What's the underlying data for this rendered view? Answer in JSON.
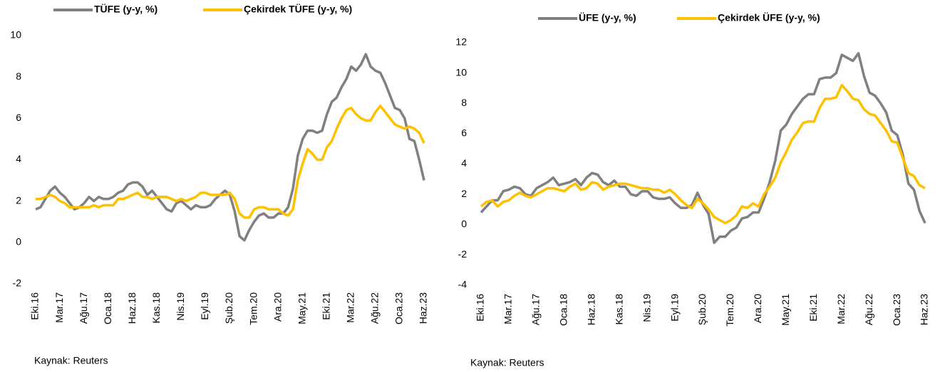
{
  "chart_data": [
    {
      "type": "line",
      "categories": [
        "Eki.16",
        null,
        null,
        null,
        null,
        "Mar.17",
        null,
        null,
        null,
        null,
        "Ağu.17",
        null,
        null,
        null,
        null,
        "Oca.18",
        null,
        null,
        null,
        null,
        "Haz.18",
        null,
        null,
        null,
        null,
        "Kas.18",
        null,
        null,
        null,
        null,
        "Nis.19",
        null,
        null,
        null,
        null,
        "Eyl.19",
        null,
        null,
        null,
        null,
        "Şub.20",
        null,
        null,
        null,
        null,
        "Tem.20",
        null,
        null,
        null,
        null,
        "Ara.20",
        null,
        null,
        null,
        null,
        "May.21",
        null,
        null,
        null,
        null,
        "Eki.21",
        null,
        null,
        null,
        null,
        "Mar.22",
        null,
        null,
        null,
        null,
        "Ağu.22",
        null,
        null,
        null,
        null,
        "Oca.23",
        null,
        null,
        null,
        null,
        "Haz.23"
      ],
      "series": [
        {
          "name": "TÜFE (y-y, %)",
          "color": "#808080",
          "values": [
            1.6,
            1.7,
            2.1,
            2.5,
            2.7,
            2.4,
            2.2,
            1.9,
            1.6,
            1.7,
            1.9,
            2.2,
            2.0,
            2.2,
            2.1,
            2.1,
            2.2,
            2.4,
            2.5,
            2.8,
            2.9,
            2.9,
            2.7,
            2.3,
            2.5,
            2.2,
            1.9,
            1.6,
            1.5,
            1.9,
            2.0,
            1.8,
            1.6,
            1.8,
            1.7,
            1.7,
            1.8,
            2.1,
            2.3,
            2.5,
            2.3,
            1.5,
            0.3,
            0.1,
            0.6,
            1.0,
            1.3,
            1.4,
            1.2,
            1.2,
            1.4,
            1.4,
            1.7,
            2.6,
            4.2,
            5.0,
            5.4,
            5.4,
            5.3,
            5.4,
            6.2,
            6.8,
            7.0,
            7.5,
            7.9,
            8.5,
            8.3,
            8.6,
            9.1,
            8.5,
            8.3,
            8.2,
            7.7,
            7.1,
            6.5,
            6.4,
            6.0,
            5.0,
            4.9,
            4.0,
            3.0
          ]
        },
        {
          "name": "Çekirdek TÜFE (y-y, %)",
          "color": "#ffc000",
          "values": [
            2.1,
            2.1,
            2.2,
            2.3,
            2.2,
            2.0,
            1.9,
            1.7,
            1.7,
            1.7,
            1.7,
            1.7,
            1.8,
            1.7,
            1.8,
            1.8,
            1.8,
            2.1,
            2.1,
            2.2,
            2.3,
            2.4,
            2.2,
            2.2,
            2.1,
            2.2,
            2.2,
            2.2,
            2.1,
            2.0,
            2.1,
            2.0,
            2.1,
            2.2,
            2.4,
            2.4,
            2.3,
            2.3,
            2.3,
            2.3,
            2.4,
            2.1,
            1.4,
            1.2,
            1.2,
            1.6,
            1.7,
            1.7,
            1.6,
            1.6,
            1.6,
            1.4,
            1.3,
            1.6,
            3.0,
            3.8,
            4.5,
            4.3,
            4.0,
            4.0,
            4.6,
            4.9,
            5.5,
            6.0,
            6.4,
            6.5,
            6.2,
            6.0,
            5.9,
            5.9,
            6.3,
            6.6,
            6.3,
            6.0,
            5.7,
            5.6,
            5.5,
            5.6,
            5.5,
            5.3,
            4.8
          ]
        }
      ],
      "ylim": [
        -2,
        10
      ],
      "yticks": [
        -2,
        0,
        2,
        4,
        6,
        8,
        10
      ],
      "source": "Kaynak: Reuters"
    },
    {
      "type": "line",
      "categories": [
        "Eki.16",
        null,
        null,
        null,
        null,
        "Mar.17",
        null,
        null,
        null,
        null,
        "Ağu.17",
        null,
        null,
        null,
        null,
        "Oca.18",
        null,
        null,
        null,
        null,
        "Haz.18",
        null,
        null,
        null,
        null,
        "Kas.18",
        null,
        null,
        null,
        null,
        "Nis.19",
        null,
        null,
        null,
        null,
        "Eyl.19",
        null,
        null,
        null,
        null,
        "Şub.20",
        null,
        null,
        null,
        null,
        "Tem.20",
        null,
        null,
        null,
        null,
        "Ara.20",
        null,
        null,
        null,
        null,
        "May.21",
        null,
        null,
        null,
        null,
        "Eki.21",
        null,
        null,
        null,
        null,
        "Mar.22",
        null,
        null,
        null,
        null,
        "Ağu.22",
        null,
        null,
        null,
        null,
        "Oca.23",
        null,
        null,
        null,
        null,
        "Haz.23"
      ],
      "series": [
        {
          "name": "ÜFE (y-y, %)",
          "color": "#808080",
          "values": [
            0.8,
            1.2,
            1.6,
            1.6,
            2.2,
            2.3,
            2.5,
            2.4,
            2.0,
            1.9,
            2.4,
            2.6,
            2.8,
            3.1,
            2.6,
            2.7,
            2.8,
            3.0,
            2.6,
            3.1,
            3.4,
            3.3,
            2.8,
            2.6,
            2.9,
            2.5,
            2.5,
            2.0,
            1.9,
            2.2,
            2.2,
            1.8,
            1.7,
            1.7,
            1.8,
            1.4,
            1.1,
            1.1,
            1.3,
            2.1,
            1.3,
            0.7,
            -1.2,
            -0.8,
            -0.8,
            -0.4,
            -0.2,
            0.4,
            0.5,
            0.8,
            0.8,
            1.7,
            2.8,
            4.2,
            6.2,
            6.6,
            7.3,
            7.8,
            8.3,
            8.6,
            8.6,
            9.6,
            9.7,
            9.7,
            10.0,
            11.2,
            11.0,
            10.8,
            11.3,
            9.8,
            8.7,
            8.5,
            8.0,
            7.4,
            6.2,
            5.9,
            4.6,
            2.7,
            2.3,
            0.9,
            0.1
          ]
        },
        {
          "name": "Çekirdek ÜFE (y-y, %)",
          "color": "#ffc000",
          "values": [
            1.2,
            1.5,
            1.6,
            1.2,
            1.5,
            1.6,
            1.9,
            2.1,
            1.9,
            1.8,
            2.0,
            2.2,
            2.4,
            2.4,
            2.3,
            2.2,
            2.5,
            2.7,
            2.3,
            2.4,
            2.8,
            2.7,
            2.3,
            2.5,
            2.6,
            2.7,
            2.7,
            2.6,
            2.5,
            2.4,
            2.4,
            2.3,
            2.3,
            2.1,
            2.3,
            2.0,
            1.6,
            1.3,
            1.1,
            1.7,
            1.4,
            1.0,
            0.5,
            0.3,
            0.1,
            0.3,
            0.6,
            1.2,
            1.1,
            1.4,
            1.2,
            2.0,
            2.5,
            3.1,
            4.1,
            4.8,
            5.6,
            6.1,
            6.7,
            6.8,
            6.8,
            7.7,
            8.3,
            8.3,
            8.4,
            9.2,
            8.8,
            8.3,
            8.2,
            7.6,
            7.3,
            7.2,
            6.7,
            6.2,
            5.5,
            5.4,
            4.4,
            3.4,
            3.2,
            2.6,
            2.4
          ]
        }
      ],
      "ylim": [
        -4,
        12
      ],
      "yticks": [
        -4,
        -2,
        0,
        2,
        4,
        6,
        8,
        10,
        12
      ],
      "source": "Kaynak: Reuters"
    }
  ]
}
